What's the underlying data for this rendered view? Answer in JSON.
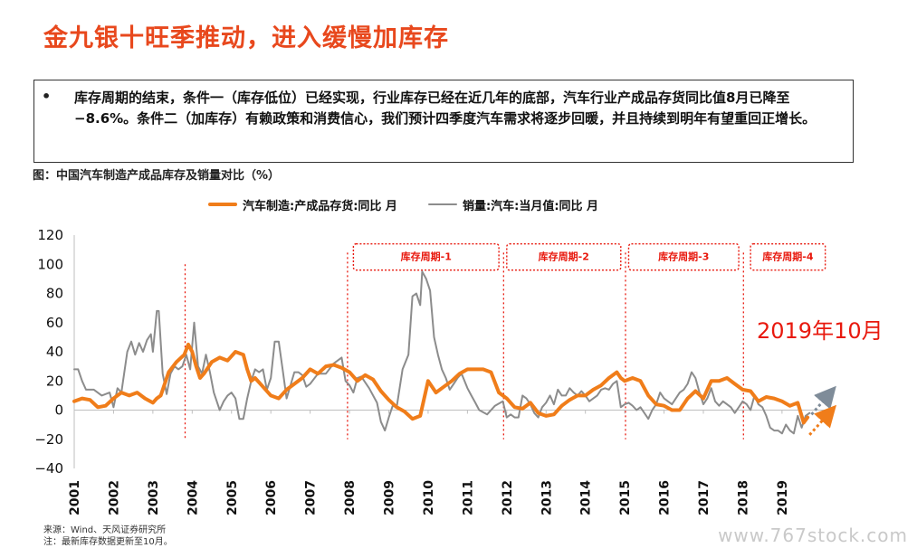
{
  "page": {
    "title": "金九银十旺季推动，进入缓慢加库存",
    "bullet_symbol": "•",
    "bullet_text": "库存周期的结束，条件一（库存低位）已经实现，行业库存已经在近几年的底部，汽车行业产成品存货同比值8月已降至−8.6%。条件二（加库存）有赖政策和消费信心，我们预计四季度汽车需求将逐步回暖，并且持续到明年有望重回正增长。",
    "figure_caption": "图：中国汽车制造产成品库存及销量对比（%）",
    "annotation": "2019年10月",
    "source_line1": "来源：Wind、天风证券研究所",
    "source_line2": "注：最新库存数据更新至10月。",
    "watermark": "www.767stock.com"
  },
  "colors": {
    "title": "#e8481d",
    "inventory": "#f07d1a",
    "sales": "#8c8c8c",
    "cycle_box": "#e8190e",
    "arrow_inventory": "#f07d1a",
    "arrow_sales": "#7f8c99"
  },
  "chart_data": {
    "type": "line",
    "ylim": [
      -40,
      120
    ],
    "yticks": [
      -40,
      -20,
      0,
      20,
      40,
      60,
      80,
      100,
      120
    ],
    "xlim": [
      2001,
      2020.2
    ],
    "xticks": [
      "2001",
      "2002",
      "2003",
      "2004",
      "2005",
      "2006",
      "2007",
      "2008",
      "2009",
      "2010",
      "2011",
      "2012",
      "2013",
      "2014",
      "2015",
      "2016",
      "2017",
      "2018",
      "2019"
    ],
    "grid": false,
    "legend_position": "top",
    "series": [
      {
        "name": "汽车制造:产成品存货:同比 月",
        "color": "#f07d1a",
        "points": [
          [
            2001.0,
            6
          ],
          [
            2001.2,
            8
          ],
          [
            2001.4,
            7
          ],
          [
            2001.6,
            2
          ],
          [
            2001.8,
            3
          ],
          [
            2002.0,
            8
          ],
          [
            2002.2,
            12
          ],
          [
            2002.4,
            10
          ],
          [
            2002.6,
            12
          ],
          [
            2002.8,
            8
          ],
          [
            2003.0,
            5
          ],
          [
            2003.1,
            8
          ],
          [
            2003.2,
            10
          ],
          [
            2003.4,
            26
          ],
          [
            2003.6,
            33
          ],
          [
            2003.8,
            38
          ],
          [
            2003.9,
            45
          ],
          [
            2004.0,
            40
          ],
          [
            2004.1,
            30
          ],
          [
            2004.2,
            22
          ],
          [
            2004.3,
            25
          ],
          [
            2004.5,
            33
          ],
          [
            2004.7,
            36
          ],
          [
            2004.9,
            34
          ],
          [
            2005.1,
            40
          ],
          [
            2005.3,
            38
          ],
          [
            2005.4,
            28
          ],
          [
            2005.5,
            20
          ],
          [
            2005.6,
            22
          ],
          [
            2005.8,
            16
          ],
          [
            2006.0,
            10
          ],
          [
            2006.2,
            8
          ],
          [
            2006.4,
            14
          ],
          [
            2006.6,
            18
          ],
          [
            2006.8,
            22
          ],
          [
            2007.0,
            28
          ],
          [
            2007.2,
            25
          ],
          [
            2007.4,
            30
          ],
          [
            2007.6,
            31
          ],
          [
            2007.8,
            29
          ],
          [
            2008.0,
            26
          ],
          [
            2008.2,
            20
          ],
          [
            2008.4,
            24
          ],
          [
            2008.6,
            21
          ],
          [
            2008.8,
            13
          ],
          [
            2009.0,
            7
          ],
          [
            2009.2,
            2
          ],
          [
            2009.4,
            -1
          ],
          [
            2009.6,
            -6
          ],
          [
            2009.8,
            -4
          ],
          [
            2010.0,
            20
          ],
          [
            2010.2,
            12
          ],
          [
            2010.4,
            16
          ],
          [
            2010.6,
            20
          ],
          [
            2010.8,
            25
          ],
          [
            2011.0,
            28
          ],
          [
            2011.2,
            28
          ],
          [
            2011.4,
            28
          ],
          [
            2011.6,
            26
          ],
          [
            2011.8,
            12
          ],
          [
            2012.0,
            8
          ],
          [
            2012.2,
            2
          ],
          [
            2012.4,
            1
          ],
          [
            2012.6,
            5
          ],
          [
            2012.8,
            -2
          ],
          [
            2013.0,
            -4
          ],
          [
            2013.2,
            -3
          ],
          [
            2013.4,
            3
          ],
          [
            2013.6,
            7
          ],
          [
            2013.8,
            10
          ],
          [
            2014.0,
            10
          ],
          [
            2014.2,
            14
          ],
          [
            2014.4,
            17
          ],
          [
            2014.6,
            22
          ],
          [
            2014.8,
            26
          ],
          [
            2014.9,
            22
          ],
          [
            2015.0,
            20
          ],
          [
            2015.2,
            22
          ],
          [
            2015.4,
            20
          ],
          [
            2015.6,
            10
          ],
          [
            2015.8,
            4
          ],
          [
            2016.0,
            3
          ],
          [
            2016.2,
            0
          ],
          [
            2016.4,
            0
          ],
          [
            2016.6,
            8
          ],
          [
            2016.8,
            13
          ],
          [
            2017.0,
            8
          ],
          [
            2017.2,
            20
          ],
          [
            2017.4,
            20
          ],
          [
            2017.6,
            22
          ],
          [
            2017.8,
            18
          ],
          [
            2018.0,
            14
          ],
          [
            2018.2,
            13
          ],
          [
            2018.4,
            6
          ],
          [
            2018.6,
            9
          ],
          [
            2018.8,
            8
          ],
          [
            2019.0,
            6
          ],
          [
            2019.2,
            3
          ],
          [
            2019.4,
            5
          ],
          [
            2019.55,
            -8.6
          ],
          [
            2019.65,
            -5
          ]
        ]
      },
      {
        "name": "销量:汽车:当月值:同比 月",
        "color": "#8c8c8c",
        "points": [
          [
            2001.0,
            28
          ],
          [
            2001.1,
            28
          ],
          [
            2001.2,
            20
          ],
          [
            2001.3,
            14
          ],
          [
            2001.5,
            14
          ],
          [
            2001.7,
            10
          ],
          [
            2001.9,
            12
          ],
          [
            2002.0,
            2
          ],
          [
            2002.1,
            15
          ],
          [
            2002.2,
            12
          ],
          [
            2002.35,
            40
          ],
          [
            2002.45,
            47
          ],
          [
            2002.55,
            38
          ],
          [
            2002.65,
            46
          ],
          [
            2002.75,
            40
          ],
          [
            2002.85,
            48
          ],
          [
            2002.95,
            52
          ],
          [
            2003.0,
            40
          ],
          [
            2003.1,
            68
          ],
          [
            2003.15,
            68
          ],
          [
            2003.25,
            25
          ],
          [
            2003.35,
            11
          ],
          [
            2003.45,
            25
          ],
          [
            2003.55,
            30
          ],
          [
            2003.65,
            28
          ],
          [
            2003.75,
            30
          ],
          [
            2003.85,
            38
          ],
          [
            2003.95,
            28
          ],
          [
            2004.05,
            60
          ],
          [
            2004.15,
            30
          ],
          [
            2004.25,
            25
          ],
          [
            2004.35,
            38
          ],
          [
            2004.45,
            26
          ],
          [
            2004.55,
            12
          ],
          [
            2004.7,
            0
          ],
          [
            2004.8,
            6
          ],
          [
            2004.9,
            10
          ],
          [
            2005.0,
            12
          ],
          [
            2005.1,
            8
          ],
          [
            2005.2,
            -6
          ],
          [
            2005.3,
            -6
          ],
          [
            2005.4,
            8
          ],
          [
            2005.5,
            20
          ],
          [
            2005.6,
            28
          ],
          [
            2005.7,
            26
          ],
          [
            2005.8,
            28
          ],
          [
            2005.9,
            14
          ],
          [
            2006.0,
            22
          ],
          [
            2006.1,
            47
          ],
          [
            2006.2,
            47
          ],
          [
            2006.3,
            28
          ],
          [
            2006.4,
            8
          ],
          [
            2006.5,
            17
          ],
          [
            2006.6,
            26
          ],
          [
            2006.7,
            26
          ],
          [
            2006.8,
            24
          ],
          [
            2006.9,
            16
          ],
          [
            2007.0,
            18
          ],
          [
            2007.2,
            25
          ],
          [
            2007.4,
            25
          ],
          [
            2007.6,
            32
          ],
          [
            2007.8,
            36
          ],
          [
            2007.9,
            20
          ],
          [
            2008.0,
            17
          ],
          [
            2008.1,
            12
          ],
          [
            2008.2,
            22
          ],
          [
            2008.3,
            23
          ],
          [
            2008.5,
            15
          ],
          [
            2008.7,
            5
          ],
          [
            2008.8,
            -8
          ],
          [
            2008.9,
            -14
          ],
          [
            2009.0,
            -5
          ],
          [
            2009.1,
            3
          ],
          [
            2009.2,
            2
          ],
          [
            2009.35,
            28
          ],
          [
            2009.5,
            38
          ],
          [
            2009.6,
            78
          ],
          [
            2009.7,
            80
          ],
          [
            2009.8,
            72
          ],
          [
            2009.85,
            95
          ],
          [
            2009.95,
            90
          ],
          [
            2010.05,
            82
          ],
          [
            2010.15,
            50
          ],
          [
            2010.25,
            38
          ],
          [
            2010.35,
            28
          ],
          [
            2010.45,
            22
          ],
          [
            2010.55,
            14
          ],
          [
            2010.65,
            18
          ],
          [
            2010.75,
            22
          ],
          [
            2010.85,
            25
          ],
          [
            2011.0,
            15
          ],
          [
            2011.1,
            10
          ],
          [
            2011.2,
            5
          ],
          [
            2011.3,
            0
          ],
          [
            2011.5,
            -3
          ],
          [
            2011.7,
            3
          ],
          [
            2011.9,
            6
          ],
          [
            2012.0,
            -5
          ],
          [
            2012.1,
            -3
          ],
          [
            2012.2,
            -5
          ],
          [
            2012.3,
            -5
          ],
          [
            2012.4,
            10
          ],
          [
            2012.5,
            8
          ],
          [
            2012.6,
            4
          ],
          [
            2012.7,
            -2
          ],
          [
            2012.8,
            -5
          ],
          [
            2012.9,
            2
          ],
          [
            2013.0,
            5
          ],
          [
            2013.1,
            10
          ],
          [
            2013.2,
            4
          ],
          [
            2013.3,
            14
          ],
          [
            2013.4,
            10
          ],
          [
            2013.5,
            10
          ],
          [
            2013.6,
            15
          ],
          [
            2013.7,
            12
          ],
          [
            2013.8,
            10
          ],
          [
            2013.9,
            13
          ],
          [
            2014.0,
            10
          ],
          [
            2014.1,
            6
          ],
          [
            2014.2,
            8
          ],
          [
            2014.3,
            10
          ],
          [
            2014.4,
            14
          ],
          [
            2014.5,
            15
          ],
          [
            2014.6,
            14
          ],
          [
            2014.7,
            18
          ],
          [
            2014.8,
            20
          ],
          [
            2014.9,
            2
          ],
          [
            2015.0,
            4
          ],
          [
            2015.1,
            5
          ],
          [
            2015.2,
            3
          ],
          [
            2015.3,
            0
          ],
          [
            2015.4,
            2
          ],
          [
            2015.5,
            -2
          ],
          [
            2015.6,
            -6
          ],
          [
            2015.7,
            0
          ],
          [
            2015.8,
            4
          ],
          [
            2015.9,
            12
          ],
          [
            2016.0,
            8
          ],
          [
            2016.1,
            6
          ],
          [
            2016.2,
            4
          ],
          [
            2016.3,
            8
          ],
          [
            2016.4,
            12
          ],
          [
            2016.5,
            14
          ],
          [
            2016.6,
            18
          ],
          [
            2016.7,
            26
          ],
          [
            2016.8,
            22
          ],
          [
            2016.9,
            12
          ],
          [
            2017.0,
            4
          ],
          [
            2017.1,
            8
          ],
          [
            2017.2,
            15
          ],
          [
            2017.3,
            6
          ],
          [
            2017.4,
            3
          ],
          [
            2017.5,
            6
          ],
          [
            2017.6,
            4
          ],
          [
            2017.7,
            2
          ],
          [
            2017.8,
            -2
          ],
          [
            2017.9,
            2
          ],
          [
            2018.0,
            6
          ],
          [
            2018.1,
            4
          ],
          [
            2018.2,
            0
          ],
          [
            2018.3,
            10
          ],
          [
            2018.4,
            4
          ],
          [
            2018.5,
            2
          ],
          [
            2018.6,
            -4
          ],
          [
            2018.7,
            -12
          ],
          [
            2018.8,
            -14
          ],
          [
            2018.9,
            -14
          ],
          [
            2019.0,
            -16
          ],
          [
            2019.1,
            -10
          ],
          [
            2019.2,
            -14
          ],
          [
            2019.3,
            -16
          ],
          [
            2019.4,
            -4
          ],
          [
            2019.5,
            -12
          ],
          [
            2019.6,
            -4
          ],
          [
            2019.7,
            -2
          ]
        ]
      }
    ],
    "cycle_dividers": [
      2003.82,
      2007.95,
      2011.92,
      2015.02,
      2018.02
    ],
    "first_divider": 2003.82,
    "cycles": [
      {
        "label": "库存周期-1",
        "from": 2008.1,
        "to": 2011.8
      },
      {
        "label": "库存周期-2",
        "from": 2012.0,
        "to": 2014.9
      },
      {
        "label": "库存周期-3",
        "from": 2015.1,
        "to": 2017.9
      },
      {
        "label": "库存周期-4",
        "from": 2018.2,
        "to": 2020.1
      }
    ]
  }
}
